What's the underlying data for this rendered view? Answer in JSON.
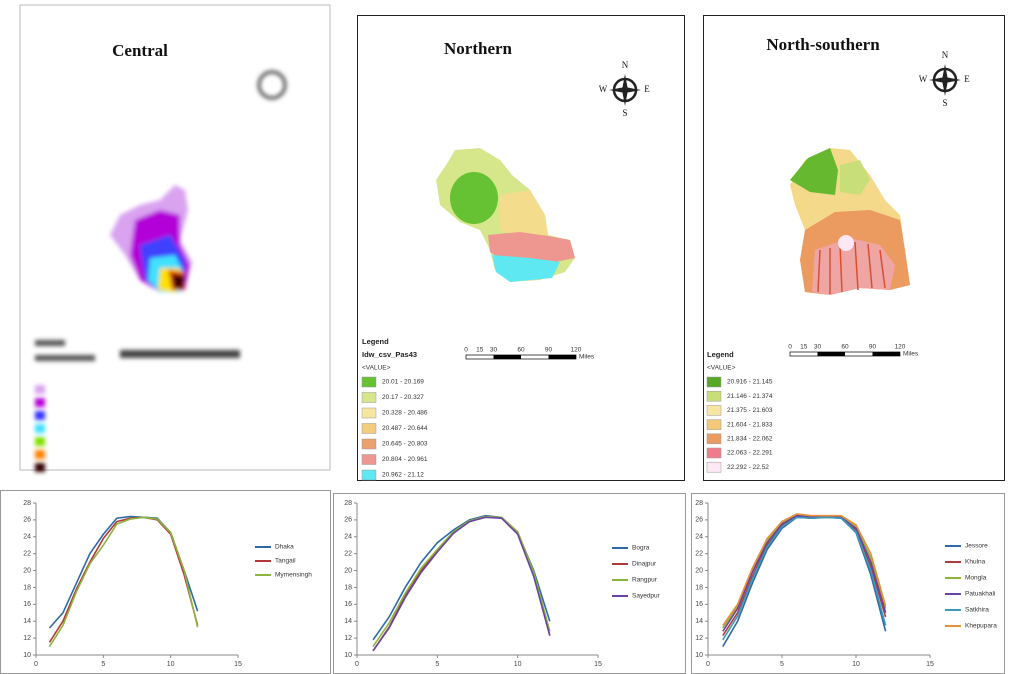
{
  "maps": [
    {
      "title": "Central"
    },
    {
      "title": "Northern",
      "compass": [
        "N",
        "E",
        "S",
        "W"
      ],
      "legend": {
        "title": "Legend",
        "field": "Idw_csv_Pas43",
        "value_header": "<VALUE>",
        "items": [
          {
            "label": "20.01 - 20.169",
            "color": "#66c232"
          },
          {
            "label": "20.17 - 20.327",
            "color": "#d6e68a"
          },
          {
            "label": "20.328 - 20.486",
            "color": "#f7e6a0"
          },
          {
            "label": "20.487 - 20.644",
            "color": "#f3cc80"
          },
          {
            "label": "20.645 - 20.803",
            "color": "#eba070"
          },
          {
            "label": "20.804 - 20.961",
            "color": "#ee9790"
          },
          {
            "label": "20.962 - 21.12",
            "color": "#5ee8f2"
          }
        ]
      },
      "scale": {
        "ticks": [
          "0",
          "15",
          "30",
          "60",
          "90",
          "120"
        ],
        "unit": "Miles"
      }
    },
    {
      "title": "North-southern",
      "compass": [
        "N",
        "E",
        "S",
        "W"
      ],
      "legend": {
        "title": "Legend",
        "value_header": "<VALUE>",
        "items": [
          {
            "label": "20.916 - 21.145",
            "color": "#55a828"
          },
          {
            "label": "21.146 - 21.374",
            "color": "#c8de78"
          },
          {
            "label": "21.375 - 21.603",
            "color": "#f7e6a0"
          },
          {
            "label": "21.604 - 21.833",
            "color": "#f5c878"
          },
          {
            "label": "21.834 - 22.062",
            "color": "#eb9a60"
          },
          {
            "label": "22.063 - 22.291",
            "color": "#f07d8a"
          },
          {
            "label": "22.292 - 22.52",
            "color": "#fde8f4"
          }
        ]
      },
      "scale": {
        "ticks": [
          "0",
          "15",
          "30",
          "60",
          "90",
          "120"
        ],
        "unit": "Miles"
      }
    }
  ],
  "chart_data": [
    {
      "type": "line",
      "x": [
        1,
        2,
        3,
        4,
        5,
        6,
        7,
        8,
        9,
        10,
        11,
        12
      ],
      "xlim": [
        0,
        15
      ],
      "xticks": [
        0,
        5,
        10,
        15
      ],
      "ylim": [
        10,
        28
      ],
      "yticks": [
        10,
        12,
        14,
        16,
        18,
        20,
        22,
        24,
        26,
        28
      ],
      "series": [
        {
          "name": "Dhaka",
          "color": "#2e6aa8",
          "values": [
            13.2,
            15,
            18.5,
            22,
            24.3,
            26.2,
            26.4,
            26.3,
            26.2,
            24.5,
            20,
            15.2
          ]
        },
        {
          "name": "Tangail",
          "color": "#b03a3a",
          "values": [
            11.5,
            14,
            17.8,
            21,
            23.8,
            25.8,
            26.2,
            26.3,
            26,
            24.3,
            19.5,
            13.5
          ]
        },
        {
          "name": "Mymensingh",
          "color": "#8db43c",
          "values": [
            11,
            13.5,
            17.5,
            20.8,
            23,
            25.5,
            26.1,
            26.3,
            26.1,
            24.5,
            20,
            13.3
          ]
        }
      ]
    },
    {
      "type": "line",
      "x": [
        1,
        2,
        3,
        4,
        5,
        6,
        7,
        8,
        9,
        10,
        11,
        12
      ],
      "xlim": [
        0,
        15
      ],
      "xticks": [
        0,
        5,
        10,
        15
      ],
      "ylim": [
        10,
        28
      ],
      "yticks": [
        10,
        12,
        14,
        16,
        18,
        20,
        22,
        24,
        26,
        28
      ],
      "series": [
        {
          "name": "Bogra",
          "color": "#2e6aa8",
          "values": [
            11.8,
            14.5,
            18,
            21,
            23.3,
            24.8,
            26,
            26.5,
            26.3,
            24.5,
            20,
            14
          ]
        },
        {
          "name": "Dinajpur",
          "color": "#b03a3a",
          "values": [
            10.5,
            13.3,
            17,
            20,
            22.3,
            24.5,
            25.8,
            26.4,
            26.2,
            24.5,
            19.5,
            12.3
          ]
        },
        {
          "name": "Rangpur",
          "color": "#8db43c",
          "values": [
            11,
            13.8,
            17.3,
            20.3,
            22.5,
            24.6,
            25.9,
            26.4,
            26.3,
            24.6,
            19.8,
            12.8
          ]
        },
        {
          "name": "Sayedpur",
          "color": "#6a44a0",
          "values": [
            10.5,
            13.2,
            16.8,
            19.8,
            22.2,
            24.4,
            25.8,
            26.3,
            26.2,
            24.3,
            19.3,
            12.3
          ]
        }
      ]
    },
    {
      "type": "line",
      "x": [
        1,
        2,
        3,
        4,
        5,
        6,
        7,
        8,
        9,
        10,
        11,
        12
      ],
      "xlim": [
        0,
        15
      ],
      "xticks": [
        0,
        5,
        10,
        15
      ],
      "ylim": [
        10,
        28
      ],
      "yticks": [
        10,
        12,
        14,
        16,
        18,
        20,
        22,
        24,
        26,
        28
      ],
      "series": [
        {
          "name": "Jessore",
          "color": "#2e6aa8",
          "values": [
            11,
            14,
            18.5,
            22.5,
            25,
            26.3,
            26.2,
            26.3,
            26.2,
            24.5,
            19.5,
            12.8
          ]
        },
        {
          "name": "Khulna",
          "color": "#b03a3a",
          "values": [
            12.3,
            15,
            19.3,
            23,
            25.3,
            26.4,
            26.3,
            26.3,
            26.3,
            24.8,
            20.5,
            14.5
          ]
        },
        {
          "name": "Mongla",
          "color": "#8db43c",
          "values": [
            13.2,
            15.8,
            20,
            23.5,
            25.6,
            26.6,
            26.4,
            26.4,
            26.4,
            25.2,
            21.5,
            15.5
          ]
        },
        {
          "name": "Patuakhali",
          "color": "#6a44a0",
          "values": [
            12.8,
            15.5,
            19.8,
            23.3,
            25.5,
            26.5,
            26.3,
            26.4,
            26.3,
            25,
            21,
            15
          ]
        },
        {
          "name": "Satkhira",
          "color": "#3a9ab8",
          "values": [
            11.8,
            14.6,
            19,
            22.8,
            25.2,
            26.3,
            26.2,
            26.3,
            26.2,
            24.6,
            20,
            13.5
          ]
        },
        {
          "name": "Khepupara",
          "color": "#e8903a",
          "values": [
            13.5,
            16,
            20.3,
            23.8,
            25.8,
            26.7,
            26.5,
            26.5,
            26.5,
            25.4,
            22,
            15.8
          ]
        }
      ]
    }
  ]
}
